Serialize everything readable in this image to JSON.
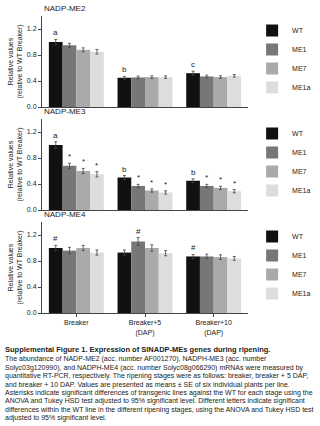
{
  "chart_data": [
    {
      "type": "bar",
      "title": "NADP-ME2",
      "ylabel": "Relative values\n(relative to WT Breaker)",
      "categories": [
        "Breaker",
        "Breaker+5\n(DAP)",
        "Breaker+10\n(DAP)"
      ],
      "series": [
        {
          "name": "WT",
          "color": "#111111",
          "values": [
            1.0,
            0.45,
            0.52
          ],
          "errors": [
            0.04,
            0.02,
            0.03
          ]
        },
        {
          "name": "ME1",
          "color": "#777777",
          "values": [
            0.95,
            0.455,
            0.47
          ],
          "errors": [
            0.03,
            0.02,
            0.02
          ]
        },
        {
          "name": "ME7",
          "color": "#aaaaaa",
          "values": [
            0.88,
            0.46,
            0.46
          ],
          "errors": [
            0.03,
            0.02,
            0.02
          ]
        },
        {
          "name": "ME1a",
          "color": "#dddddd",
          "values": [
            0.85,
            0.46,
            0.48
          ],
          "errors": [
            0.035,
            0.02,
            0.02
          ]
        }
      ],
      "ylim": [
        0,
        1.4
      ],
      "yticks": [
        {
          "value": 0,
          "label": "0.0"
        },
        0.4,
        0.8,
        1.2
      ],
      "grid": false,
      "legend": "upper right",
      "tick_labels": "y",
      "annotations": [
        {
          "text": "a",
          "category": "Breaker",
          "series": "WT"
        },
        {
          "text": "b",
          "category": "Breaker+5\n(DAP)",
          "series": "WT"
        },
        {
          "text": "c",
          "category": "Breaker+10\n(DAP)",
          "series": "WT"
        }
      ]
    },
    {
      "type": "bar",
      "title": "NADP-ME3",
      "ylabel": "Relative values\n(relative to WT Breaker)",
      "categories": [
        "Breaker",
        "Breaker+5\n(DAP)",
        "Breaker+10\n(DAP)"
      ],
      "series": [
        {
          "name": "WT",
          "color": "#111111",
          "values": [
            1.0,
            0.5,
            0.45
          ],
          "errors": [
            0.05,
            0.03,
            0.03
          ]
        },
        {
          "name": "ME1",
          "color": "#777777",
          "values": [
            0.68,
            0.37,
            0.37
          ],
          "errors": [
            0.04,
            0.025,
            0.025
          ]
        },
        {
          "name": "ME7",
          "color": "#aaaaaa",
          "values": [
            0.6,
            0.3,
            0.34
          ],
          "errors": [
            0.04,
            0.025,
            0.025
          ]
        },
        {
          "name": "ME1a",
          "color": "#dddddd",
          "values": [
            0.55,
            0.27,
            0.29
          ],
          "errors": [
            0.04,
            0.025,
            0.025
          ]
        }
      ],
      "ylim": [
        0,
        1.4
      ],
      "yticks": [
        {
          "value": 0,
          "label": "0.0"
        },
        0.4,
        0.8,
        1.2
      ],
      "grid": false,
      "legend": "upper right",
      "tick_labels": "y",
      "annotations": [
        {
          "text": "a",
          "category": "Breaker",
          "series": "WT"
        },
        {
          "text": "b",
          "category": "Breaker+5\n(DAP)",
          "series": "WT"
        },
        {
          "text": "b",
          "category": "Breaker+10\n(DAP)",
          "series": "WT"
        },
        {
          "text": "*",
          "category": "Breaker",
          "series": "ME1"
        },
        {
          "text": "*",
          "category": "Breaker",
          "series": "ME7"
        },
        {
          "text": "*",
          "category": "Breaker",
          "series": "ME1a"
        },
        {
          "text": "*",
          "category": "Breaker+5\n(DAP)",
          "series": "ME1"
        },
        {
          "text": "*",
          "category": "Breaker+5\n(DAP)",
          "series": "ME7"
        },
        {
          "text": "*",
          "category": "Breaker+5\n(DAP)",
          "series": "ME1a"
        },
        {
          "text": "*",
          "category": "Breaker+10\n(DAP)",
          "series": "ME1"
        },
        {
          "text": "*",
          "category": "Breaker+10\n(DAP)",
          "series": "ME7"
        },
        {
          "text": "*",
          "category": "Breaker+10\n(DAP)",
          "series": "ME1a"
        }
      ]
    },
    {
      "type": "bar",
      "title": "NADP-ME4",
      "ylabel": "Relative values\n(relative to WT Breaker)",
      "categories": [
        "Breaker",
        "Breaker+5\n(DAP)",
        "Breaker+10\n(DAP)"
      ],
      "series": [
        {
          "name": "WT",
          "color": "#111111",
          "values": [
            1.0,
            0.93,
            0.87
          ],
          "errors": [
            0.04,
            0.04,
            0.03
          ]
        },
        {
          "name": "ME1",
          "color": "#777777",
          "values": [
            0.96,
            1.1,
            0.87
          ],
          "errors": [
            0.05,
            0.06,
            0.035
          ]
        },
        {
          "name": "ME7",
          "color": "#aaaaaa",
          "values": [
            1.0,
            1.0,
            0.86
          ],
          "errors": [
            0.04,
            0.05,
            0.035
          ]
        },
        {
          "name": "ME1a",
          "color": "#dddddd",
          "values": [
            0.93,
            0.92,
            0.84
          ],
          "errors": [
            0.04,
            0.04,
            0.03
          ]
        }
      ],
      "ylim": [
        0,
        1.4
      ],
      "yticks": [
        {
          "value": 0,
          "label": "0.0"
        },
        0.4,
        0.8,
        1.2
      ],
      "grid": false,
      "legend": "upper right",
      "annotations": [
        {
          "text": "#",
          "category": "Breaker",
          "series": "WT"
        },
        {
          "text": "#",
          "category": "Breaker+5\n(DAP)",
          "series": "ME1"
        },
        {
          "text": "#",
          "category": "Breaker+10\n(DAP)",
          "series": "WT"
        }
      ]
    }
  ],
  "caption": {
    "title": "Supplemental Figure 1. Expression of SlNADP-MEs genes during ripening.",
    "text": "The abundance of NADP-ME2 (acc. number AF001270), NADPH-ME3 (acc. number Solyc03g120990), and NADPH-ME4 (acc. number Solyc08g066290) mRNAs were measured by quantitative RT-PCR, respectively. The ripening stages were as follows: breaker, breaker + 5 DAP, and breaker + 10 DAP. Values are presented as means ± SE of six individual plants per line. Asterisks indicate significant differences of transgenic lines against the WT for each stage using the ANOVA and Tukey HSD test adjusted to 95% significant level. Different letters indicate significant differences within the WT line in the different ripening stages, using the ANOVA and Tukey HSD test adjusted to 95% significant level."
  }
}
